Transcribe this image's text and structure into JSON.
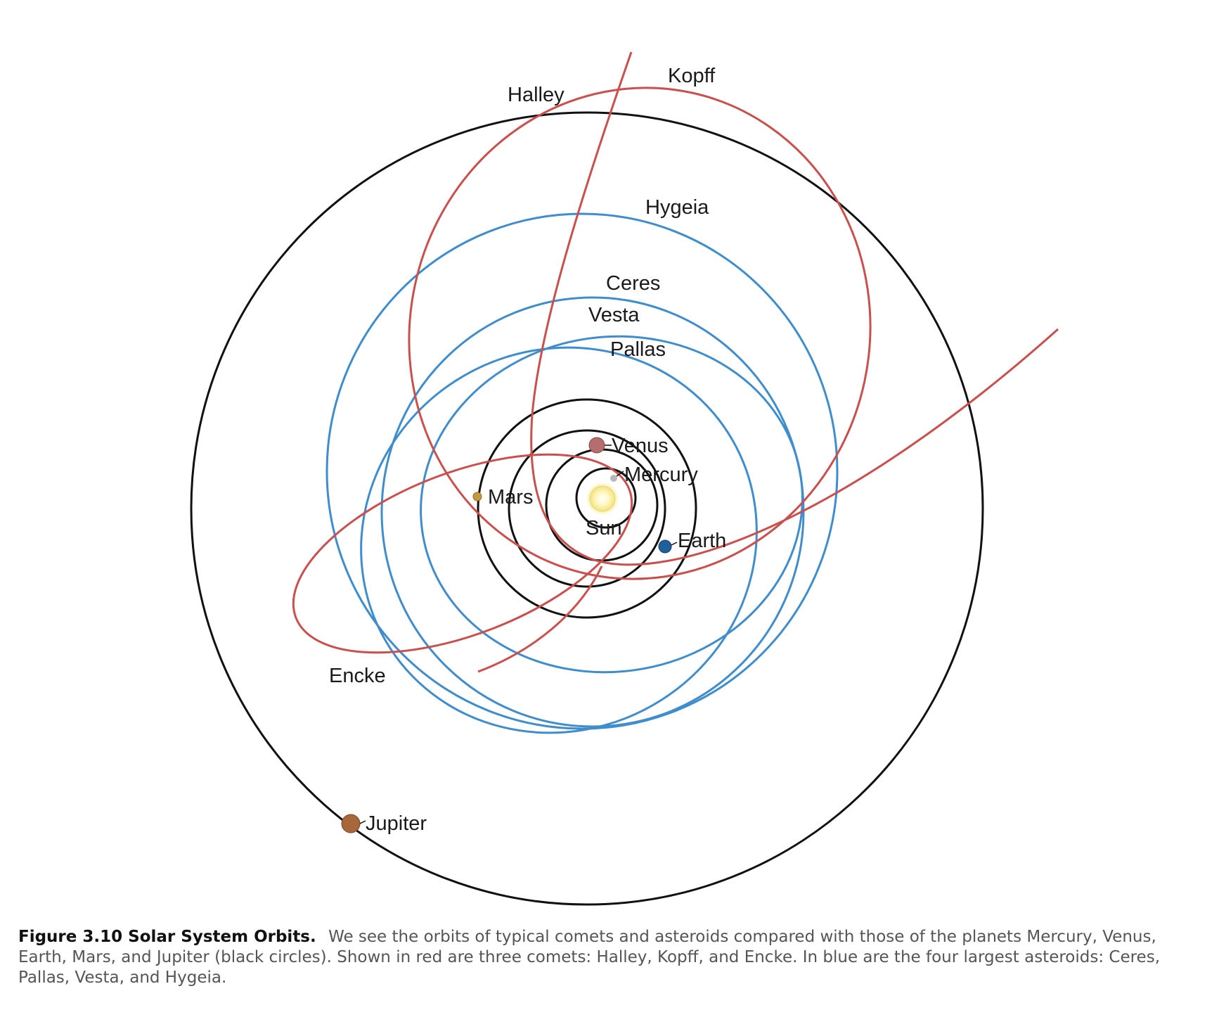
{
  "colors": {
    "planet_orbit": "#111111",
    "comet_orbit": "#c9504c",
    "asteroid_orbit": "#3f8dcc",
    "sun": "#fff2a8",
    "mercury": "#b8b8b8",
    "venus": "#b56d6d",
    "earth": "#1f5f9a",
    "mars": "#c49a3a",
    "jupiter": "#a8673a"
  },
  "labels": {
    "sun": "Sun",
    "mercury": "Mercury",
    "venus": "Venus",
    "earth": "Earth",
    "mars": "Mars",
    "jupiter": "Jupiter",
    "halley": "Halley",
    "kopff": "Kopff",
    "encke": "Encke",
    "hygeia": "Hygeia",
    "ceres": "Ceres",
    "vesta": "Vesta",
    "pallas": "Pallas"
  },
  "caption": {
    "title": "Figure 3.10 Solar System Orbits.",
    "text": "We see the orbits of typical comets and asteroids compared with those of the planets Mercury, Venus, Earth, Mars, and Jupiter (black circles). Shown in red are three comets: Halley, Kopff, and Encke. In blue are the four largest asteroids: Ceres, Pallas, Vesta, and Hygeia."
  }
}
